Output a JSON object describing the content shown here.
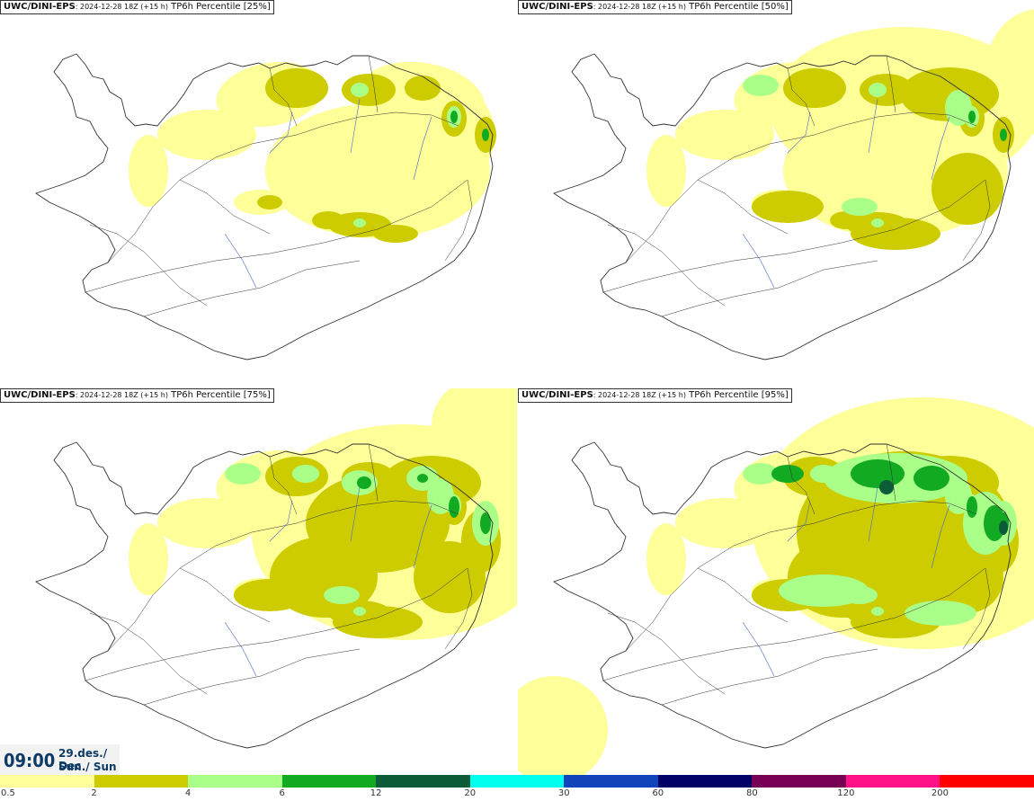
{
  "panels": [
    {
      "source": "UWC/DINI-EPS",
      "run": ": 2024-12-28 18Z (+15 h)",
      "param": " TP6h Percentile [25%]",
      "level": 0
    },
    {
      "source": "UWC/DINI-EPS",
      "run": ": 2024-12-28 18Z (+15 h)",
      "param": " TP6h Percentile [50%]",
      "level": 1
    },
    {
      "source": "UWC/DINI-EPS",
      "run": ": 2024-12-28 18Z (+15 h)",
      "param": " TP6h Percentile [75%]",
      "level": 2
    },
    {
      "source": "UWC/DINI-EPS",
      "run": ": 2024-12-28 18Z (+15 h)",
      "param": " TP6h Percentile [95%]",
      "level": 3
    }
  ],
  "valid_time": {
    "time": "09:00",
    "date": "29.des./ Dec",
    "day": "Sun./ Sun"
  },
  "legend": {
    "colors": [
      "#ffff99",
      "#cccc00",
      "#aaff88",
      "#11aa22",
      "#0c5c3a",
      "#00ffee",
      "#1144bb",
      "#000066",
      "#770055",
      "#ff1188",
      "#ff0000"
    ],
    "labels": [
      "0.5",
      "2",
      "4",
      "6",
      "12",
      "20",
      "30",
      "60",
      "80",
      "120",
      "200"
    ]
  },
  "map_colors": {
    "outline": "#333333",
    "rivers": "#4466cc"
  }
}
